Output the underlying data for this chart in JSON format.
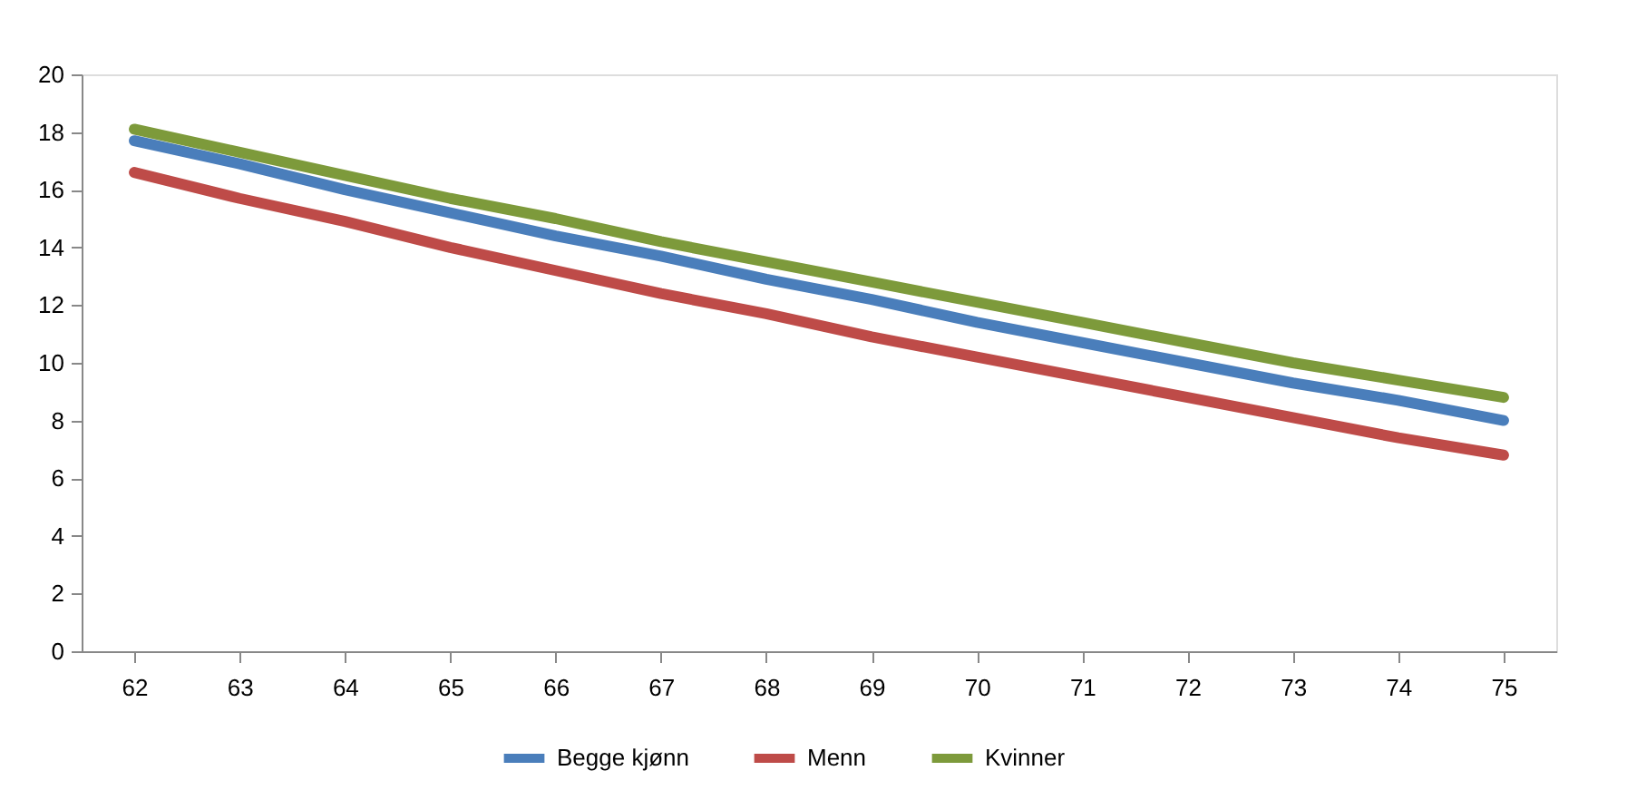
{
  "chart_data": {
    "type": "line",
    "categories": [
      "62",
      "63",
      "64",
      "65",
      "66",
      "67",
      "68",
      "69",
      "70",
      "71",
      "72",
      "73",
      "74",
      "75"
    ],
    "series": [
      {
        "name": "Begge kjønn",
        "color": "#4a7ebb",
        "values": [
          17.7,
          16.9,
          16.0,
          15.2,
          14.4,
          13.7,
          12.9,
          12.2,
          11.4,
          10.7,
          10.0,
          9.3,
          8.7,
          8.0
        ]
      },
      {
        "name": "Menn",
        "color": "#be4b48",
        "values": [
          16.6,
          15.7,
          14.9,
          14.0,
          13.2,
          12.4,
          11.7,
          10.9,
          10.2,
          9.5,
          8.8,
          8.1,
          7.4,
          6.8
        ]
      },
      {
        "name": "Kvinner",
        "color": "#7d9a3b",
        "values": [
          18.1,
          17.3,
          16.5,
          15.7,
          15.0,
          14.2,
          13.5,
          12.8,
          12.1,
          11.4,
          10.7,
          10.0,
          9.4,
          8.8
        ]
      }
    ],
    "ylim": [
      0,
      20
    ],
    "yticks": [
      0,
      2,
      4,
      6,
      8,
      10,
      12,
      14,
      16,
      18,
      20
    ],
    "grid": false,
    "legend": "bottom",
    "marker": "none",
    "line_style": "solid"
  }
}
